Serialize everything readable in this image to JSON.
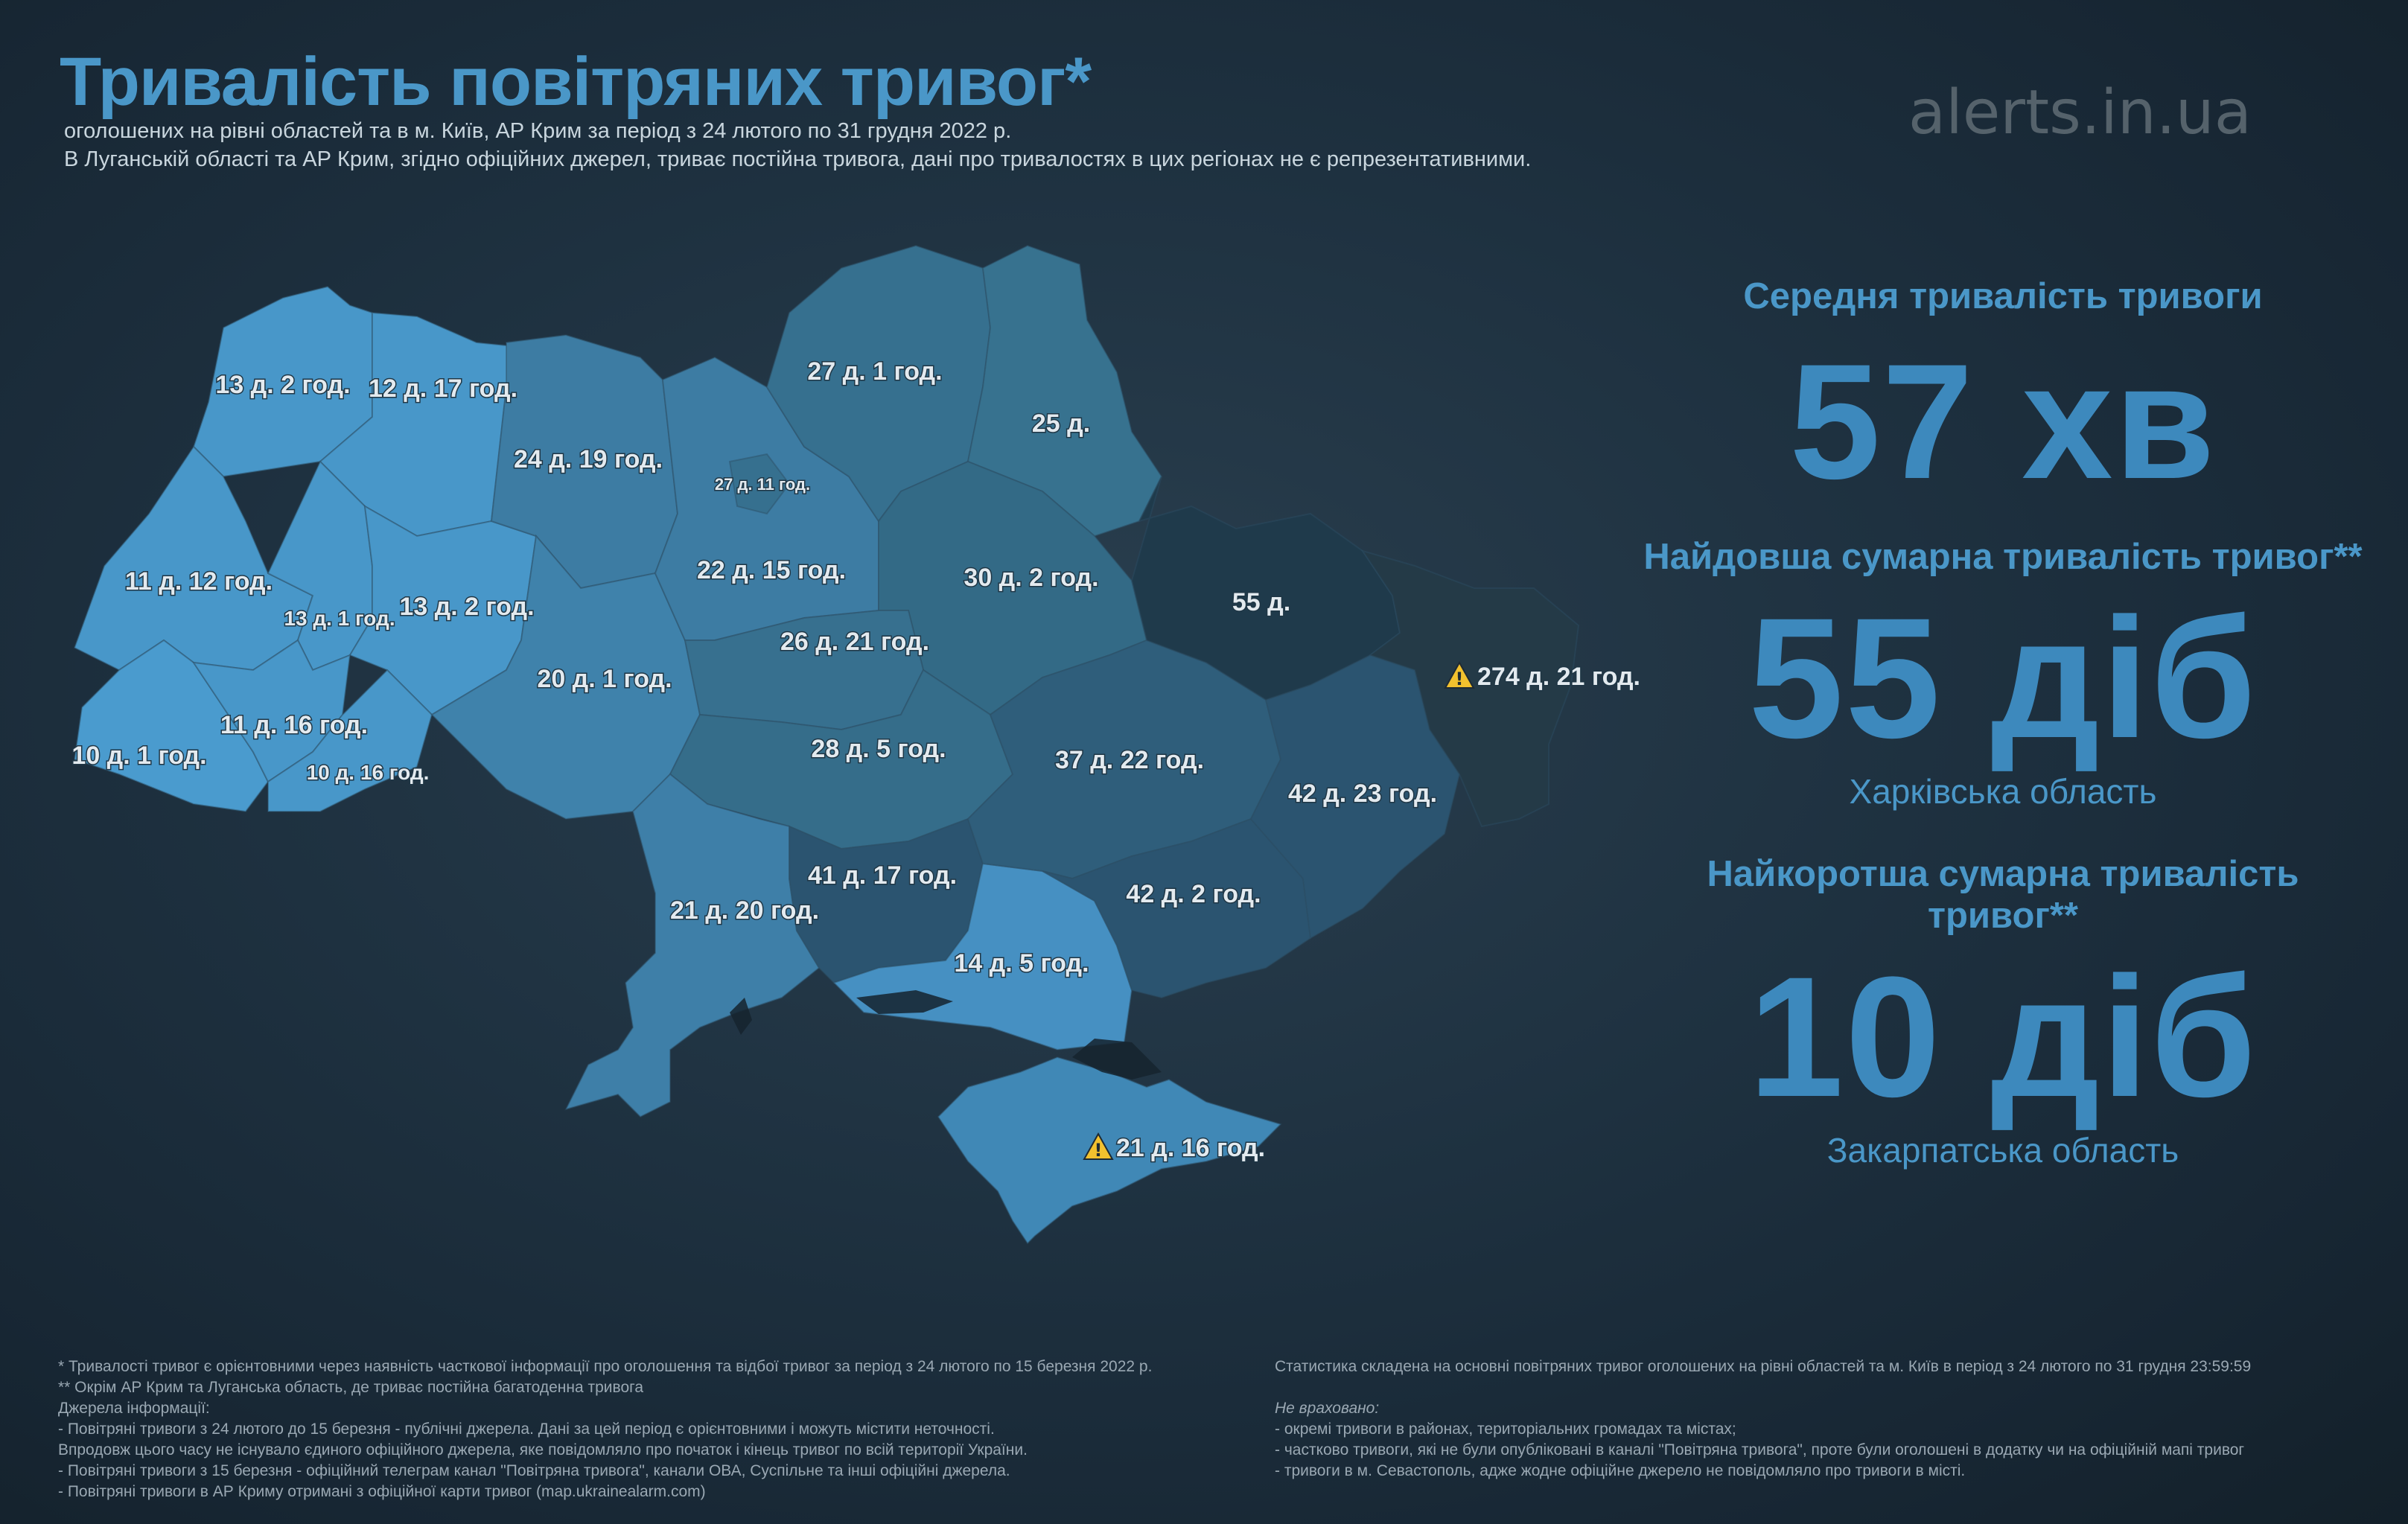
{
  "header": {
    "title": "Тривалість повітряних тривог*",
    "subtitle_line1": "оголошених на рівні областей та в м. Київ,  АР Крим за період з 24 лютого по 31 грудня 2022 р.",
    "subtitle_line2": "В Луганській області та АР Крим, згідно офіційних джерел, триває постійна тривога, дані про тривалостях в цих регіонах не є репрезентативними.",
    "brand": "alerts.in.ua"
  },
  "regions": [
    {
      "id": "volyn",
      "label": "13 д. 2 год.",
      "color": "#4897c9"
    },
    {
      "id": "rivne",
      "label": "12 д. 17 год.",
      "color": "#4897c9"
    },
    {
      "id": "lviv",
      "label": "11 д. 12 год.",
      "color": "#4897c9"
    },
    {
      "id": "ternopil",
      "label": "13 д. 1 год.",
      "color": "#4897c9"
    },
    {
      "id": "khmelnytskyi",
      "label": "13 д. 2 год.",
      "color": "#4897c9"
    },
    {
      "id": "zakarpattia",
      "label": "10 д. 1 год.",
      "color": "#4a9bce"
    },
    {
      "id": "ivano-frankivsk",
      "label": "11 д. 16 год.",
      "color": "#4897c9"
    },
    {
      "id": "chernivtsi",
      "label": "10 д. 16 год.",
      "color": "#4897c9"
    },
    {
      "id": "zhytomyr",
      "label": "24 д. 19 год.",
      "color": "#3d7ca3"
    },
    {
      "id": "vinnytsia",
      "label": "20 д. 1 год.",
      "color": "#3f82ab"
    },
    {
      "id": "kyiv-oblast",
      "label": "22 д. 15 год.",
      "color": "#3d7ca3"
    },
    {
      "id": "kyiv-city",
      "label": "27 д. 11 год.",
      "color": "#36708f"
    },
    {
      "id": "chernihiv",
      "label": "27 д. 1 год.",
      "color": "#36708f"
    },
    {
      "id": "sumy",
      "label": "25 д.",
      "color": "#37728f"
    },
    {
      "id": "poltava",
      "label": "30 д. 2 год.",
      "color": "#336a86"
    },
    {
      "id": "cherkasy",
      "label": "26 д. 21 год.",
      "color": "#37708f"
    },
    {
      "id": "kirovohrad",
      "label": "28 д. 5 год.",
      "color": "#356d8a"
    },
    {
      "id": "odesa",
      "label": "21 д. 20 год.",
      "color": "#3e7fa8"
    },
    {
      "id": "mykolaiv",
      "label": "41 д. 17 год.",
      "color": "#2b5470"
    },
    {
      "id": "kherson",
      "label": "14 д. 5 год.",
      "color": "#4690c2"
    },
    {
      "id": "dnipropetrovsk",
      "label": "37 д. 22 год.",
      "color": "#2f5e7b"
    },
    {
      "id": "zaporizhzhia",
      "label": "42 д. 2 год.",
      "color": "#2b5470"
    },
    {
      "id": "donetsk",
      "label": "42 д. 23 год.",
      "color": "#2b5470"
    },
    {
      "id": "kharkiv",
      "label": "55 д.",
      "color": "#1f3a4b"
    },
    {
      "id": "luhansk",
      "label": "274 д. 21 год.",
      "color": "#243a47",
      "warning": true
    },
    {
      "id": "crimea",
      "label": "21 д. 16 год.",
      "color": "#4088b6",
      "warning": true
    }
  ],
  "stats": {
    "average_label": "Середня тривалість тривоги",
    "average_value": "57 хв",
    "longest_label": "Найдовша сумарна тривалість тривог**",
    "longest_value": "55 діб",
    "longest_region": "Харківська область",
    "shortest_label": "Найкоротша сумарна тривалість тривог**",
    "shortest_value": "10 діб",
    "shortest_region": "Закарпатська область"
  },
  "footer": {
    "left": [
      "* Тривалості тривог є орієнтовними через наявність часткової інформації про оголошення та відбої тривог за період з 24 лютого  по 15 березня 2022 р.",
      "**  Окрім АР Крим та Луганська область, де триває постійна багатоденна тривога",
      "Джерела інформації:",
      "- Повітряні тривоги з 24 лютого до 15 березня - публічні джерела. Дані за цей період є орієнтовними і можуть містити неточності.",
      " Впродовж цього часу не існувало єдиного офіційного джерела, яке повідомляло про початок і кінець тривог по всій території України.",
      "- Повітряні тривоги з 15 березня - офіційний телеграм канал \"Повітряна тривога\", канали ОВА, Суспільне та інші офіційні джерела.",
      "- Повітряні тривоги в АР Криму отримані з офіційної карти тривог (map.ukrainealarm.com)"
    ],
    "right_intro": "Статистика складена на основні повітряних тривог оголошених на рівні областей та м. Київ в період з 24 лютого по 31 грудня 23:59:59",
    "right_not_included_title": "Не враховано:",
    "right_not_included": [
      "- окремі тривоги в районах, територіальних громадах та містах;",
      "- частково тривоги, які не були опубліковані в каналі \"Повітряна тривога\", проте були оголошені в додатку чи на офіційній мапі тривог",
      "- тривоги в м. Севастополь, адже жодне офіційне джерело не повідомляло про тривоги в місті."
    ]
  }
}
